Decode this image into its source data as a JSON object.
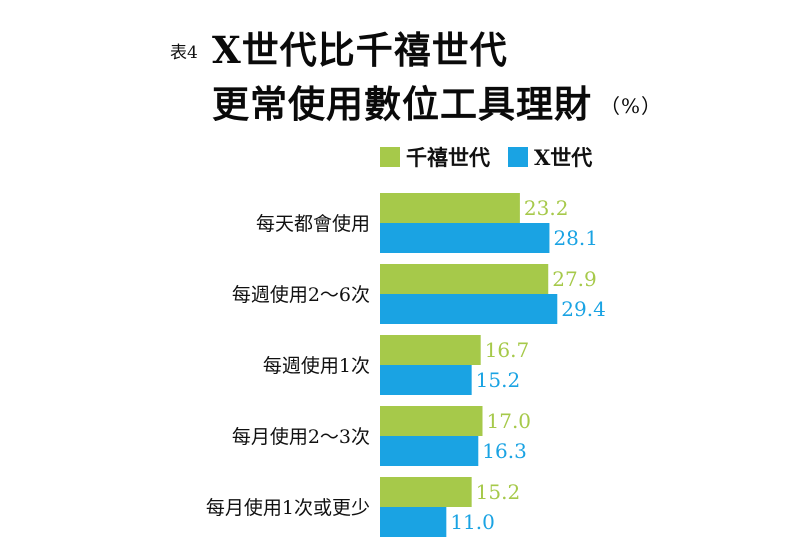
{
  "title": {
    "table_no": "表4",
    "line1": "X世代比千禧世代",
    "line2": "更常使用數位工具理財",
    "unit": "（%）"
  },
  "colors": {
    "millennials": "#a6c94a",
    "genx": "#1aa3e3"
  },
  "chart_data": {
    "type": "bar",
    "orientation": "horizontal",
    "categories": [
      "每天都會使用",
      "每週使用2～6次",
      "每週使用1次",
      "每月使用2～3次",
      "每月使用1次或更少"
    ],
    "series": [
      {
        "name": "千禧世代",
        "values": [
          23.2,
          27.9,
          16.7,
          17.0,
          15.2
        ],
        "labels": [
          "23.2",
          "27.9",
          "16.7",
          "17.0",
          "15.2"
        ]
      },
      {
        "name": "X世代",
        "values": [
          28.1,
          29.4,
          15.2,
          16.3,
          11.0
        ],
        "labels": [
          "28.1",
          "29.4",
          "15.2",
          "16.3",
          "11.0"
        ]
      }
    ],
    "xlim": [
      0,
      30
    ],
    "legend": "top",
    "grid": false
  }
}
